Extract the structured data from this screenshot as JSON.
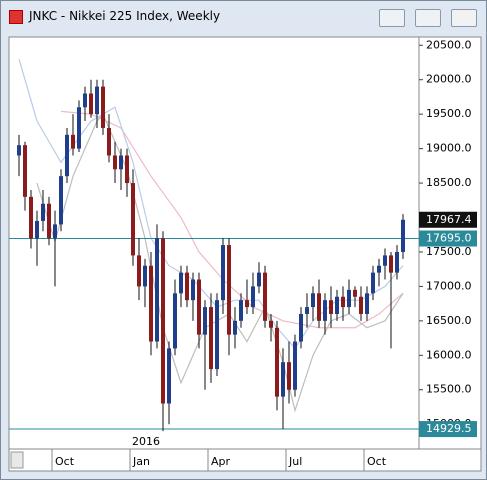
{
  "window_title": "JNKC - Nikkei 225 Index, Weekly",
  "chart_data": {
    "type": "candlestick",
    "ohlc": [
      [
        18900,
        19200,
        18600,
        19050
      ],
      [
        19050,
        19100,
        18100,
        18300
      ],
      [
        18300,
        18400,
        17550,
        17700
      ],
      [
        17700,
        18100,
        17300,
        17950
      ],
      [
        17950,
        18400,
        17800,
        18200
      ],
      [
        18200,
        18300,
        17600,
        17700
      ],
      [
        17700,
        18100,
        17000,
        17900
      ],
      [
        17900,
        18700,
        17800,
        18600
      ],
      [
        18600,
        19300,
        18500,
        19200
      ],
      [
        19200,
        19500,
        18900,
        19000
      ],
      [
        19000,
        19700,
        18950,
        19600
      ],
      [
        19600,
        19900,
        19400,
        19800
      ],
      [
        19800,
        20000,
        19450,
        19500
      ],
      [
        19500,
        20000,
        19300,
        19900
      ],
      [
        19900,
        20000,
        19200,
        19300
      ],
      [
        19300,
        19500,
        18800,
        18900
      ],
      [
        18900,
        19100,
        18500,
        18700
      ],
      [
        18700,
        19000,
        18400,
        18900
      ],
      [
        18900,
        19000,
        18300,
        18500
      ],
      [
        18500,
        18700,
        17300,
        17450
      ],
      [
        17450,
        17700,
        16800,
        17000
      ],
      [
        17000,
        17400,
        16700,
        17300
      ],
      [
        17300,
        17500,
        16000,
        16200
      ],
      [
        16200,
        17900,
        16100,
        17700
      ],
      [
        17700,
        17800,
        14900,
        15300
      ],
      [
        15300,
        16200,
        15000,
        16100
      ],
      [
        16100,
        17100,
        16000,
        16900
      ],
      [
        16900,
        17300,
        16700,
        17200
      ],
      [
        17200,
        17300,
        16700,
        16800
      ],
      [
        16800,
        17200,
        16500,
        17100
      ],
      [
        17100,
        17200,
        16100,
        16300
      ],
      [
        16300,
        16800,
        15500,
        16700
      ],
      [
        16700,
        16900,
        15600,
        15800
      ],
      [
        15800,
        16900,
        15700,
        16800
      ],
      [
        16800,
        17700,
        16600,
        17600
      ],
      [
        17600,
        17700,
        16000,
        16300
      ],
      [
        16300,
        16700,
        16100,
        16500
      ],
      [
        16500,
        16900,
        16400,
        16800
      ],
      [
        16800,
        17100,
        16600,
        16700
      ],
      [
        16700,
        17200,
        16600,
        17000
      ],
      [
        17000,
        17350,
        16900,
        17200
      ],
      [
        17200,
        17300,
        16400,
        16500
      ],
      [
        16500,
        16600,
        16200,
        16400
      ],
      [
        16400,
        16500,
        15200,
        15400
      ],
      [
        15400,
        16100,
        14930,
        15900
      ],
      [
        15900,
        16200,
        15300,
        15500
      ],
      [
        15500,
        16300,
        15400,
        16200
      ],
      [
        16200,
        16700,
        16100,
        16600
      ],
      [
        16600,
        16900,
        16400,
        16700
      ],
      [
        16700,
        17000,
        16500,
        16900
      ],
      [
        16900,
        17100,
        16400,
        16500
      ],
      [
        16500,
        16900,
        16300,
        16800
      ],
      [
        16800,
        17000,
        16400,
        16600
      ],
      [
        16600,
        16950,
        16500,
        16850
      ],
      [
        16850,
        17000,
        16500,
        16700
      ],
      [
        16700,
        17100,
        16600,
        16950
      ],
      [
        16950,
        17000,
        16700,
        16850
      ],
      [
        16850,
        17000,
        16500,
        16600
      ],
      [
        16600,
        17000,
        16500,
        16900
      ],
      [
        16900,
        17300,
        16800,
        17200
      ],
      [
        17200,
        17400,
        17000,
        17300
      ],
      [
        17300,
        17550,
        17100,
        17450
      ],
      [
        17450,
        17500,
        16100,
        17200
      ],
      [
        17200,
        17600,
        17100,
        17500
      ],
      [
        17500,
        18050,
        17400,
        17967.4
      ]
    ],
    "up_color": "#1f3f8c",
    "down_color": "#8c1c1c",
    "overlays": [
      {
        "color": "#f0b8c8",
        "x": [
          7,
          12,
          17,
          22,
          27,
          30,
          34,
          39,
          44,
          50,
          56,
          60,
          64
        ],
        "values": [
          19540,
          19500,
          19300,
          18600,
          18000,
          17500,
          17100,
          16700,
          16500,
          16400,
          16400,
          16600,
          16900
        ]
      },
      {
        "color": "#b8cce8",
        "x": [
          0,
          3,
          7,
          12,
          16,
          19,
          22,
          25,
          29,
          33,
          36,
          40,
          43,
          46,
          49,
          53,
          57,
          61,
          64
        ],
        "values": [
          20300,
          19400,
          18800,
          19400,
          19600,
          18800,
          17700,
          17300,
          17100,
          16700,
          16800,
          16800,
          16400,
          16100,
          16500,
          16800,
          16800,
          17000,
          17300
        ]
      },
      {
        "color": "#bdbdbd",
        "x": [
          3,
          6,
          9,
          13,
          14,
          18,
          21,
          24,
          27,
          31,
          35,
          38,
          41,
          44,
          46,
          49,
          52,
          55,
          58,
          61,
          64
        ],
        "values": [
          18500,
          17650,
          18600,
          19400,
          19500,
          18700,
          17700,
          16400,
          15600,
          16400,
          16600,
          16200,
          16700,
          15900,
          15200,
          16000,
          16500,
          16600,
          16400,
          16500,
          16900
        ]
      }
    ],
    "ylim": [
      14640,
      20620
    ],
    "yticks": [
      {
        "value": 15000,
        "label": "15000.0"
      },
      {
        "value": 15500,
        "label": "15500.0"
      },
      {
        "value": 16000,
        "label": "16000.0"
      },
      {
        "value": 16500,
        "label": "16500.0"
      },
      {
        "value": 17000,
        "label": "17000.0"
      },
      {
        "value": 17500,
        "label": "17500.0"
      },
      {
        "value": 18000,
        "label": "18000.0"
      },
      {
        "value": 18500,
        "label": "18500.0"
      },
      {
        "value": 19000,
        "label": "19000.0"
      },
      {
        "value": 19500,
        "label": "19500.0"
      },
      {
        "value": 20000,
        "label": "20000.0"
      },
      {
        "value": 20500,
        "label": "20500.0"
      }
    ],
    "xticks": [
      {
        "value": 6,
        "label": "Oct"
      },
      {
        "value": 19,
        "label": "Jan"
      },
      {
        "value": 32,
        "label": "Apr"
      },
      {
        "value": 45,
        "label": "Jul"
      },
      {
        "value": 58,
        "label": "Oct"
      }
    ],
    "year_label": {
      "value": 19,
      "label": "2016"
    },
    "reference_lines": [
      {
        "value": 17695.0,
        "label": "17695.0"
      },
      14929.5
    ],
    "reference_color": "#2a8a9a",
    "grid": false
  }
}
